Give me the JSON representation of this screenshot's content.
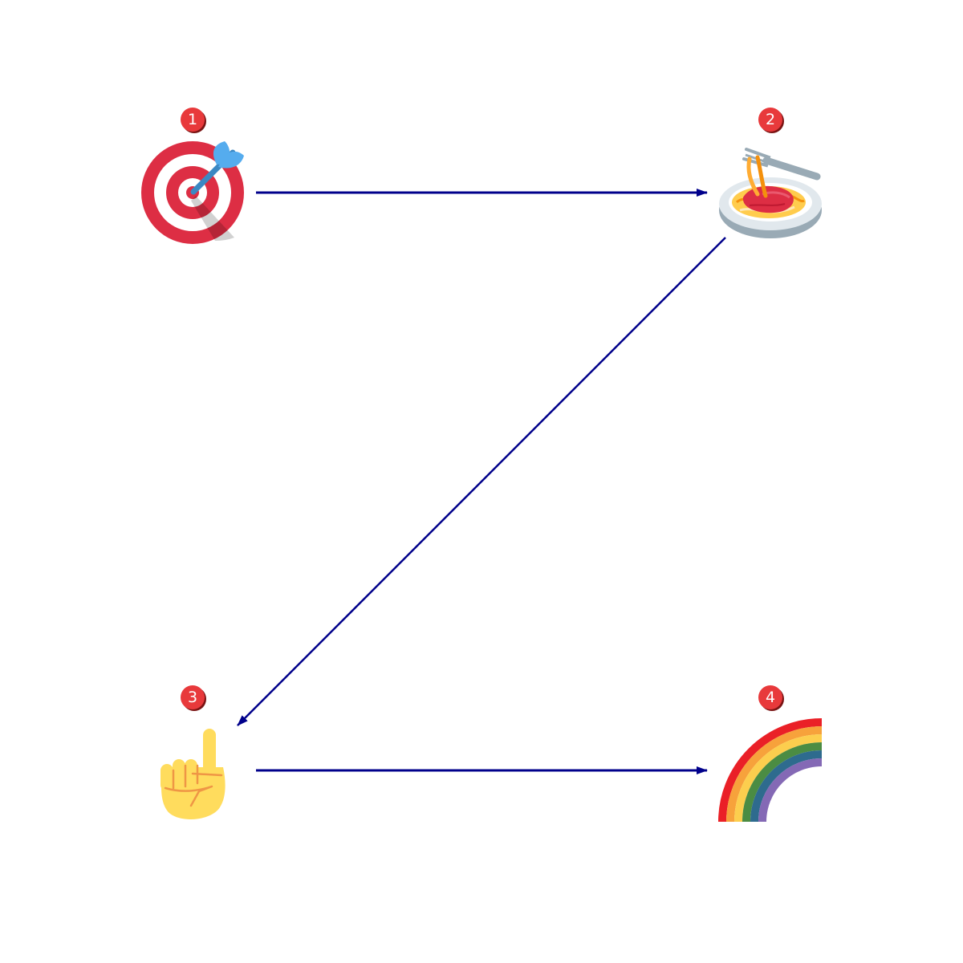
{
  "diagram": {
    "colors": {
      "arrow": "#00008b",
      "badge_fill": "#e8393b",
      "badge_shadow": "#7a1414",
      "badge_text": "#ffffff"
    },
    "nodes": [
      {
        "id": "n1",
        "step": "1",
        "icon": "direct-hit-target-icon"
      },
      {
        "id": "n2",
        "step": "2",
        "icon": "spaghetti-plate-icon"
      },
      {
        "id": "n3",
        "step": "3",
        "icon": "index-pointing-up-icon"
      },
      {
        "id": "n4",
        "step": "4",
        "icon": "rainbow-icon"
      }
    ],
    "edges": [
      {
        "from": "n1",
        "to": "n2"
      },
      {
        "from": "n2",
        "to": "n3"
      },
      {
        "from": "n3",
        "to": "n4"
      }
    ]
  }
}
